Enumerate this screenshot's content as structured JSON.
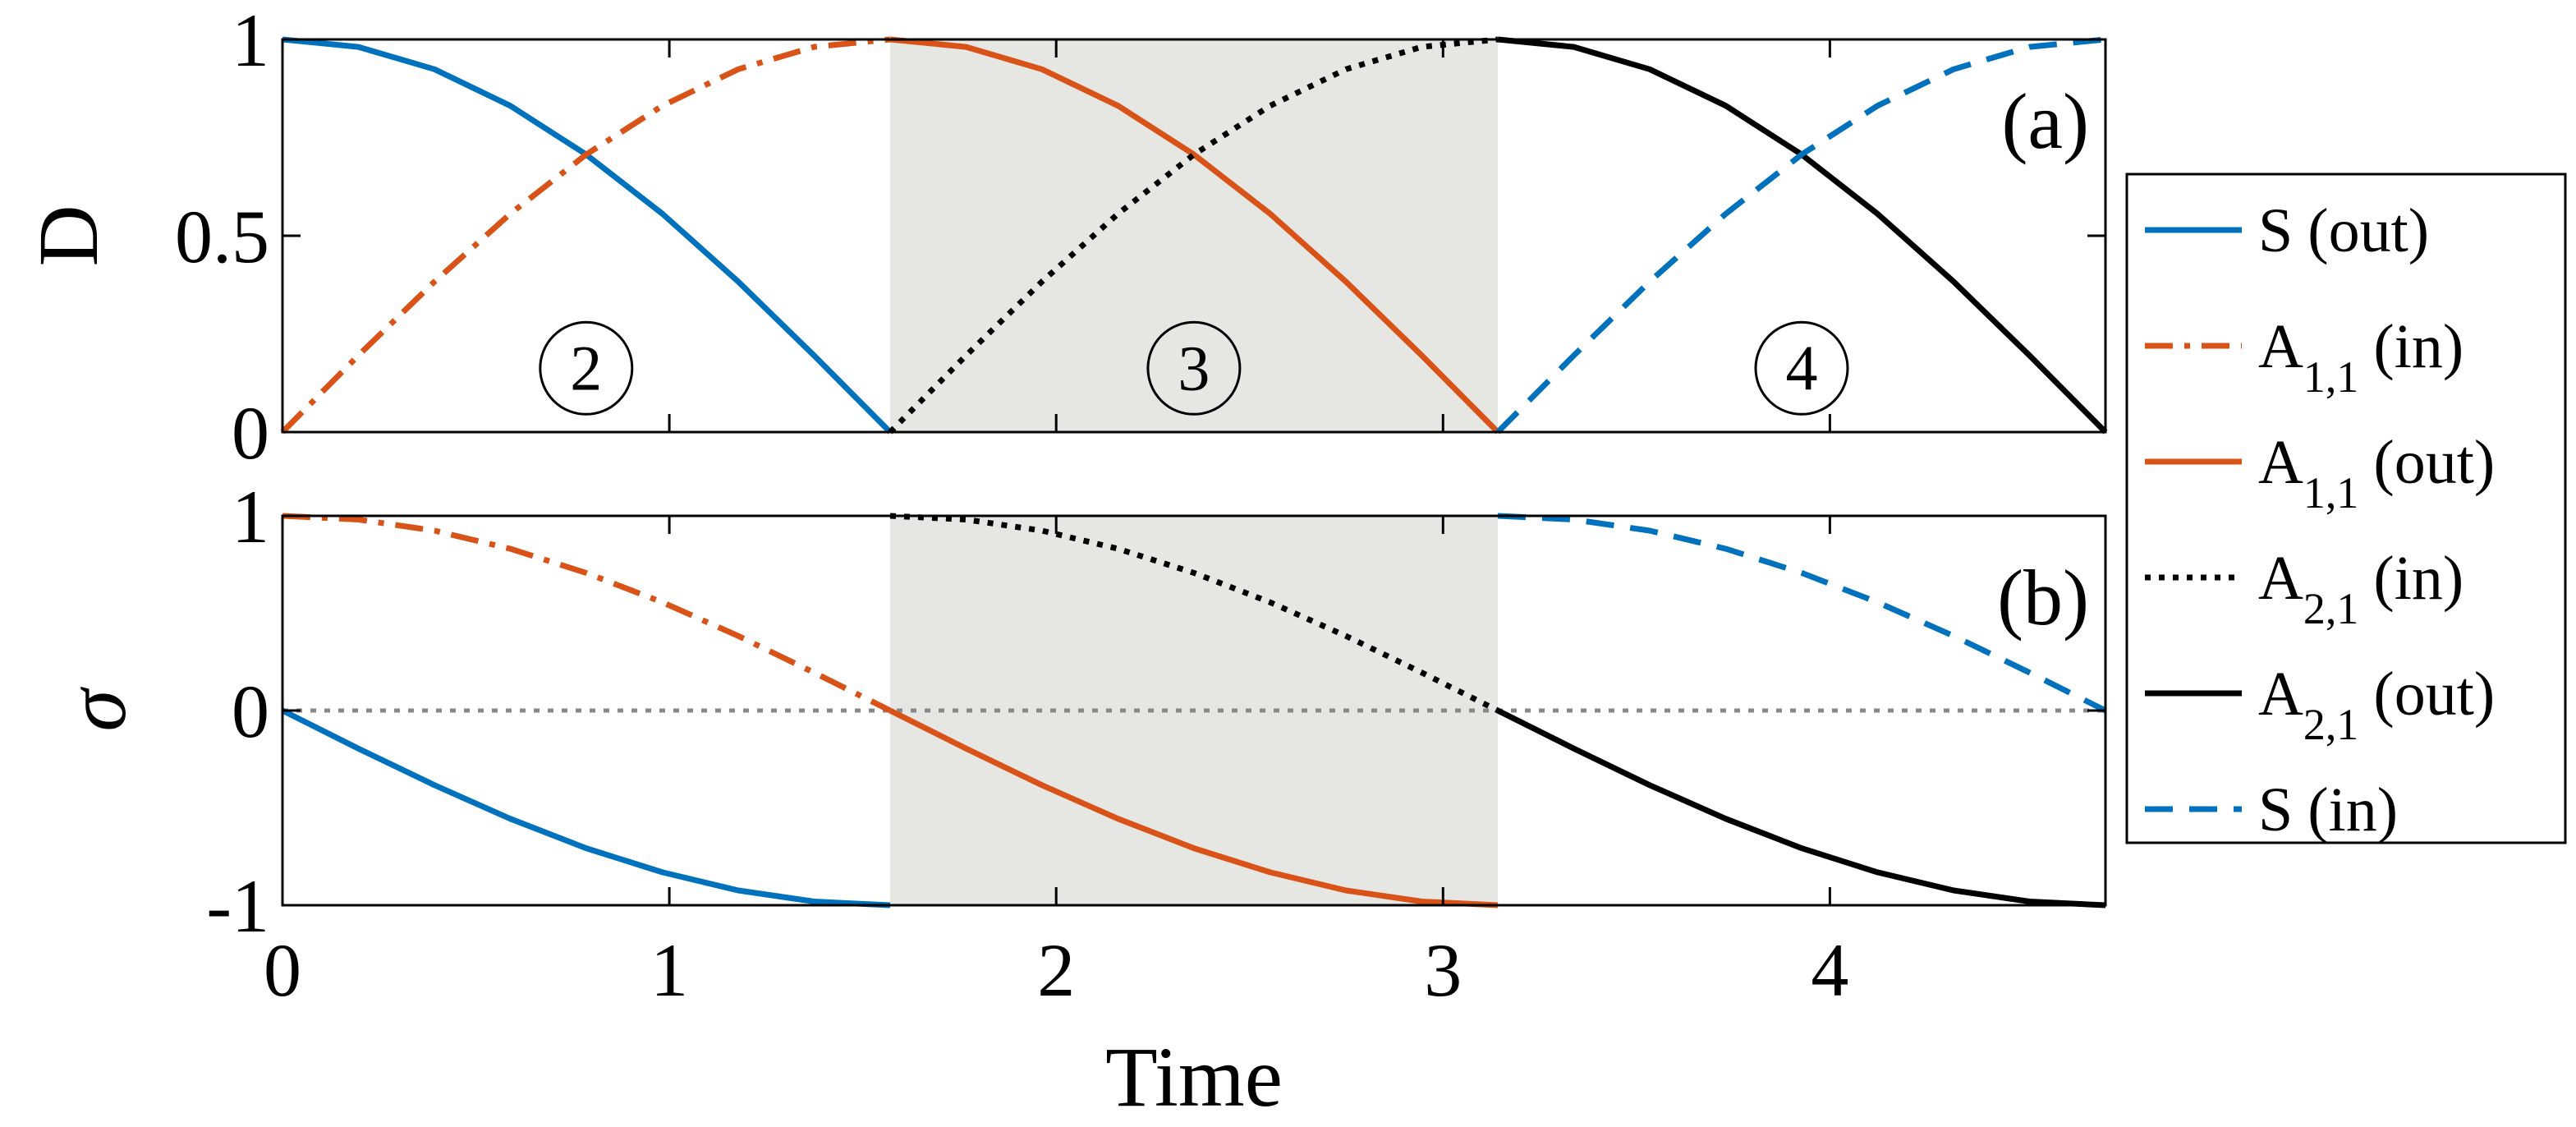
{
  "chart_data": [
    {
      "type": "line",
      "panel_label": "(a)",
      "ylabel": "D",
      "xlim": [
        0,
        4.7124
      ],
      "ylim": [
        0,
        1
      ],
      "xticks": [
        0,
        1,
        2,
        3,
        4
      ],
      "yticks": [
        0,
        0.5,
        1
      ],
      "ytick_labels": [
        "0",
        "0.5",
        "1"
      ],
      "shaded_region": [
        1.5708,
        3.1416
      ],
      "region_labels": [
        {
          "text": "2",
          "x": 0.785,
          "y": 0.15
        },
        {
          "text": "3",
          "x": 2.356,
          "y": 0.15
        },
        {
          "text": "4",
          "x": 3.927,
          "y": 0.15
        }
      ],
      "series": [
        {
          "legend_key": "S_out",
          "color": "#0072BD",
          "style": "solid",
          "x": [
            0,
            0.196,
            0.393,
            0.589,
            0.785,
            0.982,
            1.178,
            1.374,
            1.5708
          ],
          "y": [
            1,
            0.981,
            0.924,
            0.831,
            0.707,
            0.556,
            0.383,
            0.195,
            0
          ]
        },
        {
          "legend_key": "A11_in",
          "color": "#D95319",
          "style": "dashdot",
          "x": [
            0,
            0.196,
            0.393,
            0.589,
            0.785,
            0.982,
            1.178,
            1.374,
            1.5708
          ],
          "y": [
            0,
            0.195,
            0.383,
            0.556,
            0.707,
            0.831,
            0.924,
            0.981,
            1
          ]
        },
        {
          "legend_key": "A11_out",
          "color": "#D95319",
          "style": "solid",
          "x": [
            1.5708,
            1.767,
            1.963,
            2.16,
            2.356,
            2.553,
            2.749,
            2.945,
            3.1416
          ],
          "y": [
            1,
            0.981,
            0.924,
            0.831,
            0.707,
            0.556,
            0.383,
            0.195,
            0
          ]
        },
        {
          "legend_key": "A21_in",
          "color": "#000000",
          "style": "dotted",
          "x": [
            1.5708,
            1.767,
            1.963,
            2.16,
            2.356,
            2.553,
            2.749,
            2.945,
            3.1416
          ],
          "y": [
            0,
            0.195,
            0.383,
            0.556,
            0.707,
            0.831,
            0.924,
            0.981,
            1
          ]
        },
        {
          "legend_key": "A21_out",
          "color": "#000000",
          "style": "solid",
          "x": [
            3.1416,
            3.338,
            3.534,
            3.731,
            3.927,
            4.123,
            4.32,
            4.516,
            4.7124
          ],
          "y": [
            1,
            0.981,
            0.924,
            0.831,
            0.707,
            0.556,
            0.383,
            0.195,
            0
          ]
        },
        {
          "legend_key": "S_in",
          "color": "#0072BD",
          "style": "dashed",
          "x": [
            3.1416,
            3.338,
            3.534,
            3.731,
            3.927,
            4.123,
            4.32,
            4.516,
            4.7124
          ],
          "y": [
            0,
            0.195,
            0.383,
            0.556,
            0.707,
            0.831,
            0.924,
            0.981,
            1
          ]
        }
      ]
    },
    {
      "type": "line",
      "panel_label": "(b)",
      "ylabel": "σ",
      "xlabel": "Time",
      "xlim": [
        0,
        4.7124
      ],
      "ylim": [
        -1,
        1
      ],
      "xticks": [
        0,
        1,
        2,
        3,
        4
      ],
      "xtick_labels": [
        "0",
        "1",
        "2",
        "3",
        "4"
      ],
      "yticks": [
        -1,
        0,
        1
      ],
      "ytick_labels": [
        "-1",
        "0",
        "1"
      ],
      "shaded_region": [
        1.5708,
        3.1416
      ],
      "reference_line": {
        "y": 0,
        "color": "#888888",
        "style": "dotted"
      },
      "series": [
        {
          "legend_key": "S_out",
          "color": "#0072BD",
          "style": "solid",
          "x": [
            0,
            0.196,
            0.393,
            0.589,
            0.785,
            0.982,
            1.178,
            1.374,
            1.5708
          ],
          "y": [
            0,
            -0.195,
            -0.383,
            -0.556,
            -0.707,
            -0.831,
            -0.924,
            -0.981,
            -1
          ]
        },
        {
          "legend_key": "A11_in",
          "color": "#D95319",
          "style": "dashdot",
          "x": [
            0,
            0.196,
            0.393,
            0.589,
            0.785,
            0.982,
            1.178,
            1.374,
            1.5708
          ],
          "y": [
            1,
            0.981,
            0.924,
            0.831,
            0.707,
            0.556,
            0.383,
            0.195,
            0
          ]
        },
        {
          "legend_key": "A11_out",
          "color": "#D95319",
          "style": "solid",
          "x": [
            1.5708,
            1.767,
            1.963,
            2.16,
            2.356,
            2.553,
            2.749,
            2.945,
            3.1416
          ],
          "y": [
            0,
            -0.195,
            -0.383,
            -0.556,
            -0.707,
            -0.831,
            -0.924,
            -0.981,
            -1
          ]
        },
        {
          "legend_key": "A21_in",
          "color": "#000000",
          "style": "dotted",
          "x": [
            1.5708,
            1.767,
            1.963,
            2.16,
            2.356,
            2.553,
            2.749,
            2.945,
            3.1416
          ],
          "y": [
            1,
            0.981,
            0.924,
            0.831,
            0.707,
            0.556,
            0.383,
            0.195,
            0
          ]
        },
        {
          "legend_key": "A21_out",
          "color": "#000000",
          "style": "solid",
          "x": [
            3.1416,
            3.338,
            3.534,
            3.731,
            3.927,
            4.123,
            4.32,
            4.516,
            4.7124
          ],
          "y": [
            0,
            -0.195,
            -0.383,
            -0.556,
            -0.707,
            -0.831,
            -0.924,
            -0.981,
            -1
          ]
        },
        {
          "legend_key": "S_in",
          "color": "#0072BD",
          "style": "dashed",
          "x": [
            3.1416,
            3.338,
            3.534,
            3.731,
            3.927,
            4.123,
            4.32,
            4.516,
            4.7124
          ],
          "y": [
            1,
            0.981,
            0.924,
            0.831,
            0.707,
            0.556,
            0.383,
            0.195,
            0
          ]
        }
      ]
    }
  ],
  "legend": {
    "placement": "right",
    "entries": [
      {
        "key": "S_out",
        "name": "S",
        "sub": "",
        "suffix": "(out)",
        "color": "#0072BD",
        "style": "solid"
      },
      {
        "key": "A11_in",
        "name": "A",
        "sub": "1,1",
        "suffix": "(in)",
        "color": "#D95319",
        "style": "dashdot"
      },
      {
        "key": "A11_out",
        "name": "A",
        "sub": "1,1",
        "suffix": "(out)",
        "color": "#D95319",
        "style": "solid"
      },
      {
        "key": "A21_in",
        "name": "A",
        "sub": "2,1",
        "suffix": "(in)",
        "color": "#000000",
        "style": "dotted"
      },
      {
        "key": "A21_out",
        "name": "A",
        "sub": "2,1",
        "suffix": "(out)",
        "color": "#000000",
        "style": "solid"
      },
      {
        "key": "S_in",
        "name": "S",
        "sub": "",
        "suffix": "(in)",
        "color": "#0072BD",
        "style": "dashed"
      }
    ]
  },
  "colors": {
    "shade": "#e6e6e3",
    "axis": "#000000"
  }
}
